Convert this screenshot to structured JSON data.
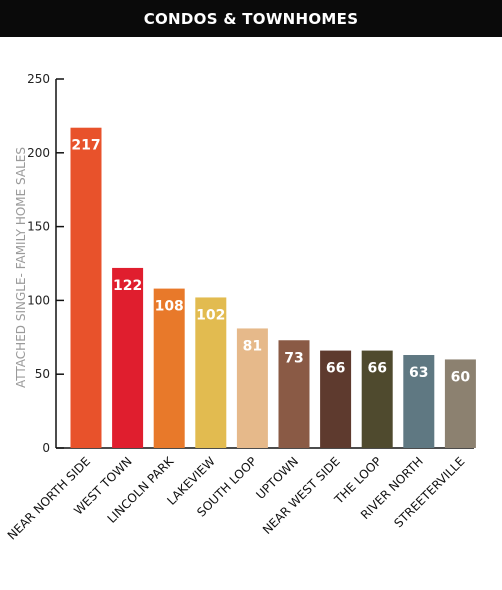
{
  "header": {
    "title": "CONDOS & TOWNHOMES"
  },
  "chart_data": {
    "type": "bar",
    "title": "CONDOS & TOWNHOMES",
    "xlabel": "",
    "ylabel": "ATTACHED SINGLE- FAMILY HOME SALES",
    "ylim": [
      0,
      250
    ],
    "yticks": [
      0,
      50,
      100,
      150,
      200,
      250
    ],
    "grid": false,
    "categories": [
      "NEAR NORTH SIDE",
      "WEST TOWN",
      "LINCOLN PARK",
      "LAKEVIEW",
      "SOUTH LOOP",
      "UPTOWN",
      "NEAR WEST SIDE",
      "THE LOOP",
      "RIVER NORTH",
      "STREETERVILLE"
    ],
    "values": [
      217,
      122,
      108,
      102,
      81,
      73,
      66,
      66,
      63,
      60
    ],
    "colors": [
      "#e8522b",
      "#e01e2e",
      "#e8792a",
      "#e2bb50",
      "#e6b98a",
      "#8a5a45",
      "#5e3a2e",
      "#4f4a2e",
      "#5f7882",
      "#8c8170"
    ]
  }
}
